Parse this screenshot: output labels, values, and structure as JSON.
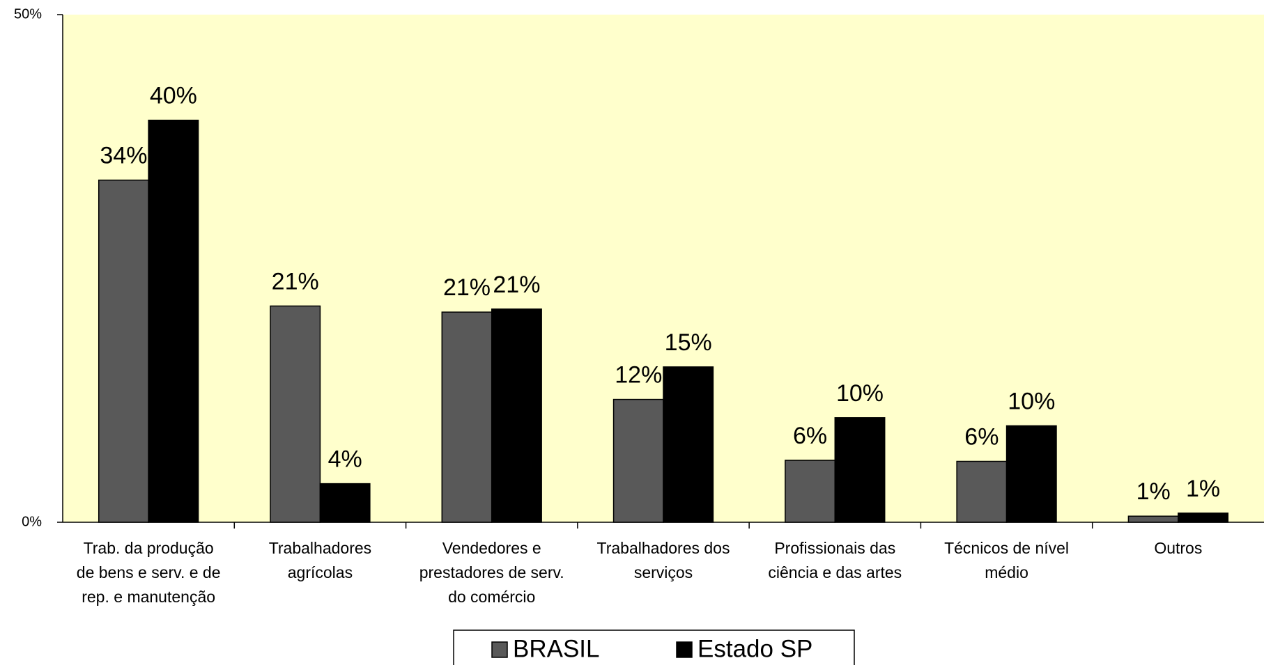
{
  "chart_data": {
    "type": "bar",
    "categories": [
      "Trab. da produção de bens e serv. e de rep. e manutenção",
      "Trabalhadores agrícolas",
      "Vendedores e prestadores de serv. do comércio",
      "Trabalhadores dos serviços",
      "Profissionais das ciência e das artes",
      "Técnicos de nível médio",
      "Outros"
    ],
    "series": [
      {
        "name": "BRASIL",
        "color": "#595959",
        "values": [
          33.7,
          21.3,
          20.7,
          12.1,
          6.1,
          6.0,
          0.6
        ],
        "value_labels": [
          "34%",
          "21%",
          "21%",
          "12%",
          "6%",
          "6%",
          "1%"
        ]
      },
      {
        "name": "Estado SP",
        "color": "#000000",
        "values": [
          39.6,
          3.8,
          21.0,
          15.3,
          10.3,
          9.5,
          0.9
        ],
        "value_labels": [
          "40%",
          "4%",
          "21%",
          "15%",
          "10%",
          "10%",
          "1%"
        ]
      }
    ],
    "ylim": [
      0,
      50
    ],
    "yticks": [
      {
        "value": 0,
        "label": "0%"
      },
      {
        "value": 50,
        "label": "50%"
      }
    ],
    "legend": "bottom"
  }
}
